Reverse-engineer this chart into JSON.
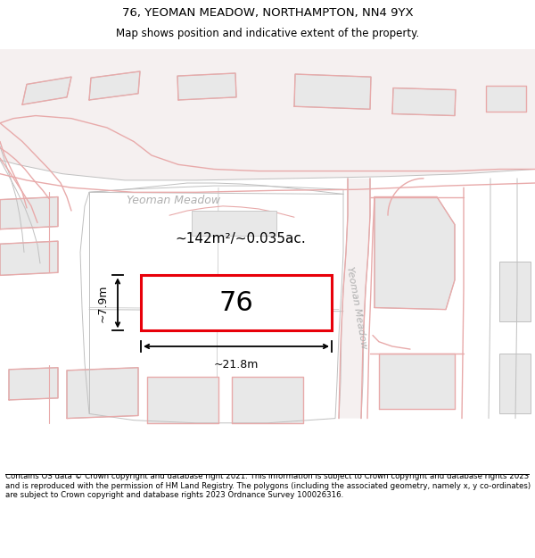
{
  "title": "76, YEOMAN MEADOW, NORTHAMPTON, NN4 9YX",
  "subtitle": "Map shows position and indicative extent of the property.",
  "footer": "Contains OS data © Crown copyright and database right 2021. This information is subject to Crown copyright and database rights 2023 and is reproduced with the permission of HM Land Registry. The polygons (including the associated geometry, namely x, y co-ordinates) are subject to Crown copyright and database rights 2023 Ordnance Survey 100026316.",
  "bg_color": "#ffffff",
  "map_bg": "#ffffff",
  "road_fill": "#f5f0f0",
  "plot_fill": "#e8e8e8",
  "plot_edge": "#c0c0c0",
  "pink": "#e8aaaa",
  "gray_line": "#c8c8c8",
  "red": "#e8000a",
  "highlight_fill": "#ffffff",
  "street_color": "#b0b0b0",
  "area_label": "~142m²/~0.035ac.",
  "number_label": "76",
  "width_label": "~21.8m",
  "height_label": "~7.9m",
  "street_label_h": "Yeoman Meadow",
  "street_label_v": "Yeoman Meadow"
}
